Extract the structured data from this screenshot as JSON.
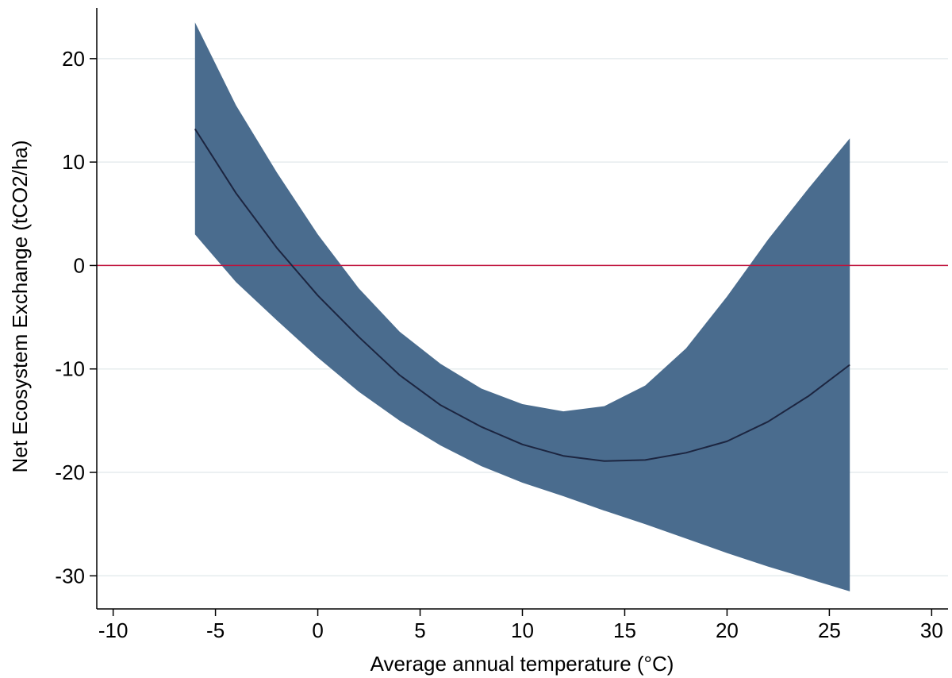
{
  "chart_data": {
    "type": "area",
    "title": "",
    "xlabel": "Average annual temperature (°C)",
    "ylabel": "Net Ecosystem Exchange (tCO2/ha)",
    "xlim": [
      -10.8,
      30.8
    ],
    "ylim": [
      -33.2,
      24.9
    ],
    "x_ticks": [
      -10,
      -5,
      0,
      5,
      10,
      15,
      20,
      25,
      30
    ],
    "y_ticks": [
      -30,
      -20,
      -10,
      0,
      10,
      20
    ],
    "grid": "horizontal",
    "reference_line": {
      "y": 0,
      "color": "#c0103a"
    },
    "band": {
      "color": "#4a6c8e",
      "x": [
        -6,
        -4,
        -2,
        0,
        2,
        4,
        6,
        8,
        10,
        12,
        14,
        16,
        18,
        20,
        22,
        24,
        26
      ],
      "upper": [
        23.5,
        15.5,
        9,
        3,
        -2.2,
        -6.4,
        -9.5,
        -11.9,
        -13.4,
        -14.1,
        -13.6,
        -11.6,
        -8,
        -3,
        2.5,
        7.5,
        12.3
      ],
      "lower": [
        3,
        -1.6,
        -5.3,
        -8.9,
        -12.2,
        -15,
        -17.4,
        -19.4,
        -21,
        -22.3,
        -23.7,
        -25,
        -26.4,
        -27.8,
        -29.1,
        -30.3,
        -31.5
      ]
    },
    "series": [
      {
        "color": "#1c2540",
        "x": [
          -6,
          -4,
          -2,
          0,
          2,
          4,
          6,
          8,
          10,
          12,
          14,
          16,
          18,
          20,
          22,
          24,
          26
        ],
        "y": [
          13.2,
          7,
          1.7,
          -2.9,
          -6.9,
          -10.6,
          -13.5,
          -15.6,
          -17.3,
          -18.4,
          -18.9,
          -18.8,
          -18.1,
          -17,
          -15.1,
          -12.6,
          -9.6
        ]
      }
    ]
  }
}
